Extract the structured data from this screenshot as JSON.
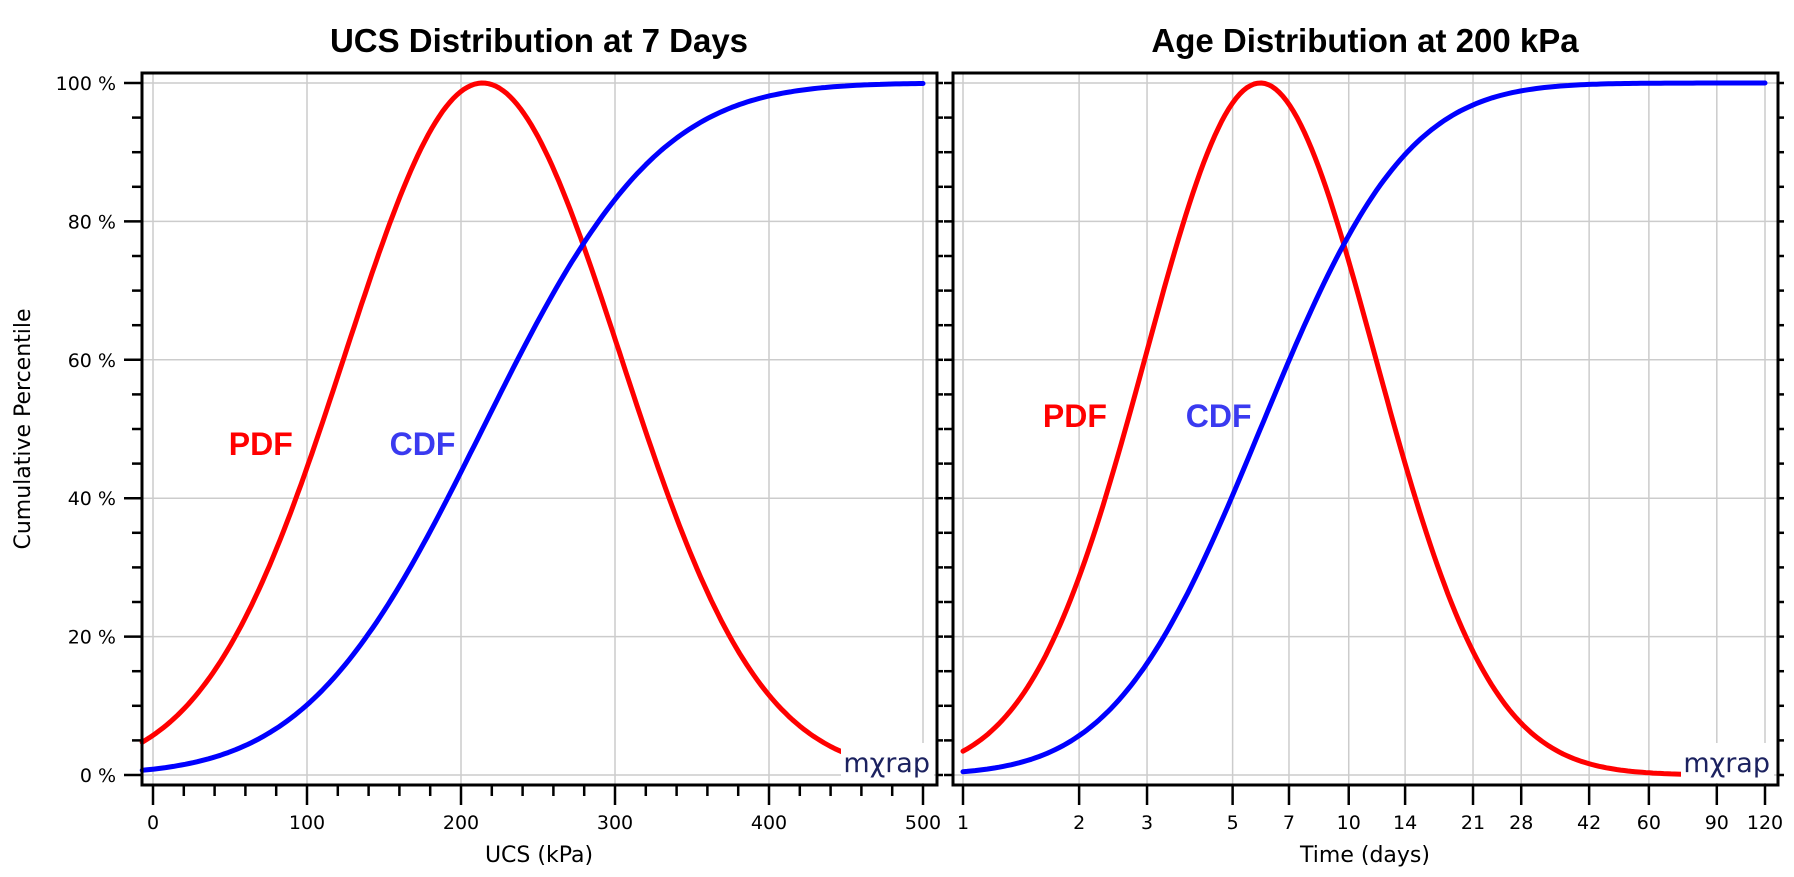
{
  "colors": {
    "pdf": "#FF0000",
    "cdf": "#0000FF",
    "cdf_label": "#3A3AF0",
    "grid": "#CCCCCC",
    "logo": "#1C2260"
  },
  "shared": {
    "ylabel": "Cumulative Percentile",
    "logo_text": "mχrap"
  },
  "chart_data": [
    {
      "type": "line",
      "title": "UCS Distribution at 7 Days",
      "xlabel": "UCS (kPa)",
      "ylabel": "Cumulative Percentile",
      "xscale": "linear",
      "xlim": [
        -7,
        508
      ],
      "ylim": [
        0,
        100
      ],
      "xticks": [
        0,
        100,
        200,
        300,
        400,
        500
      ],
      "xtick_labels": [
        "0",
        "100",
        "200",
        "300",
        "400",
        "500"
      ],
      "x_minor_step": 20,
      "yticks": [
        0,
        20,
        40,
        60,
        80,
        100
      ],
      "ytick_labels": [
        "0 %",
        "20 %",
        "40 %",
        "60 %",
        "80 %",
        "100 %"
      ],
      "y_minor_step": 5,
      "grid": true,
      "distribution": {
        "kind": "normal",
        "mean": 214,
        "std": 89.5
      },
      "series": [
        {
          "name": "PDF",
          "label": "PDF",
          "note": "normalized to peak = 100 %",
          "x": [
            -7,
            25,
            50,
            75,
            100,
            125,
            150,
            175,
            200,
            214,
            225,
            250,
            275,
            300,
            325,
            350,
            375,
            400,
            425,
            452
          ],
          "y": [
            4.8,
            10.8,
            18.4,
            28.9,
            44.3,
            61.1,
            77.4,
            91.0,
            98.8,
            100,
            99.2,
            92.2,
            79.3,
            63.0,
            46.3,
            31.4,
            19.7,
            11.4,
            6.2,
            2.9
          ]
        },
        {
          "name": "CDF",
          "label": "CDF",
          "x": [
            -7,
            25,
            50,
            75,
            100,
            125,
            150,
            175,
            200,
            225,
            250,
            275,
            300,
            325,
            350,
            375,
            400,
            425,
            450,
            475,
            500
          ],
          "y": [
            0.7,
            1.7,
            3.4,
            6.0,
            10.1,
            16.0,
            23.8,
            33.2,
            43.8,
            54.9,
            65.7,
            75.2,
            83.0,
            89.2,
            93.5,
            96.4,
            98.1,
            99.1,
            99.6,
            99.8,
            99.9
          ]
        }
      ],
      "annotations": [
        {
          "text": "PDF",
          "x": 70,
          "y": 48,
          "color_key": "pdf"
        },
        {
          "text": "CDF",
          "x": 175,
          "y": 48,
          "color_key": "cdf_label"
        }
      ],
      "legend": "none",
      "logo": "mχrap",
      "logo_position": "bottom-right"
    },
    {
      "type": "line",
      "title": "Age Distribution at 200 kPa",
      "xlabel": "Time (days)",
      "ylabel": "Cumulative Percentile",
      "xscale": "log",
      "xlim": [
        0.94,
        131
      ],
      "ylim": [
        0,
        100
      ],
      "xticks": [
        1,
        2,
        3,
        5,
        7,
        10,
        14,
        21,
        28,
        42,
        60,
        90,
        120
      ],
      "xtick_labels": [
        "1",
        "2",
        "3",
        "5",
        "7",
        "10",
        "14",
        "21",
        "28",
        "42",
        "60",
        "90",
        "120"
      ],
      "yticks": [
        0,
        20,
        40,
        60,
        80,
        100
      ],
      "y_minor_step": 5,
      "grid": true,
      "distribution": {
        "kind": "lognormal",
        "median_days": 5.9,
        "std_log10": 0.297
      },
      "series": [
        {
          "name": "PDF",
          "label": "PDF",
          "note": "normalized to peak = 100 %",
          "x": [
            1,
            1.5,
            2,
            3,
            4,
            5,
            5.9,
            7,
            10,
            14,
            21,
            28,
            42,
            60,
            73
          ],
          "y": [
            3.5,
            11.9,
            24.0,
            48.9,
            71.2,
            89.6,
            100,
            96.7,
            73.4,
            45.2,
            19.3,
            9.0,
            2.8,
            0.9,
            0.5
          ]
        },
        {
          "name": "CDF",
          "label": "CDF",
          "x": [
            1,
            1.5,
            2,
            3,
            4,
            5,
            5.9,
            7,
            10,
            14,
            21,
            28,
            42,
            60,
            90,
            120
          ],
          "y": [
            0.5,
            2.0,
            5.1,
            15.3,
            28.3,
            40.3,
            50.0,
            62.3,
            84.6,
            94.0,
            98.6,
            99.6,
            99.9,
            100,
            100,
            100
          ]
        }
      ],
      "annotations": [
        {
          "text": "PDF",
          "x": 1.95,
          "y": 52,
          "color_key": "pdf"
        },
        {
          "text": "CDF",
          "x": 4.6,
          "y": 52,
          "color_key": "cdf_label"
        }
      ],
      "legend": "none",
      "logo": "mχrap",
      "logo_position": "bottom-right"
    }
  ]
}
